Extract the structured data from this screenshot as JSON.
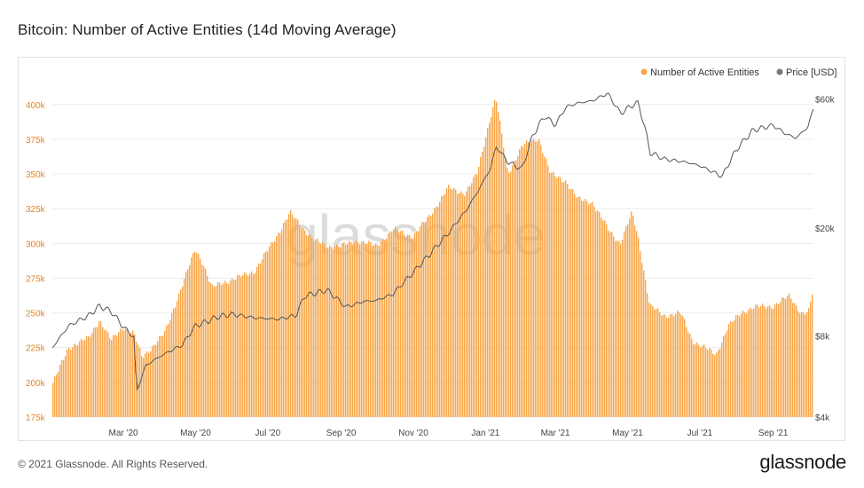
{
  "title": "Bitcoin: Number of Active Entities (14d Moving Average)",
  "footer": {
    "copyright": "© 2021 Glassnode. All Rights Reserved.",
    "logo": "glassnode"
  },
  "colors": {
    "bars": "#f7a64a",
    "bar_stroke": "#ef9a3a",
    "price": "#555555",
    "left_axis": "#e0862d",
    "grid": "#ececec",
    "watermark": "#dcdcdc"
  },
  "chart_data": {
    "type": "bar",
    "title": "Bitcoin: Number of Active Entities (14d Moving Average)",
    "watermark": "glassnode",
    "legend": [
      "Number of Active Entities",
      "Price [USD]"
    ],
    "legend_position": "top-right",
    "x_ticks": [
      "Mar '20",
      "May '20",
      "Jul '20",
      "Sep '20",
      "Nov '20",
      "Jan '21",
      "Mar '21",
      "May '21",
      "Jul '21",
      "Sep '21"
    ],
    "y_left": {
      "ticks": [
        "175k",
        "200k",
        "225k",
        "250k",
        "275k",
        "300k",
        "325k",
        "350k",
        "375k",
        "400k"
      ],
      "range": [
        175000,
        412000
      ]
    },
    "y_right": {
      "ticks": [
        "$4k",
        "$8k",
        "$20k",
        "$60k"
      ],
      "scale": "log",
      "range": [
        4000,
        66000
      ]
    },
    "series": [
      {
        "name": "Number of Active Entities",
        "type": "bar",
        "x": [
          "2020-01-01",
          "2020-01-15",
          "2020-02-01",
          "2020-02-10",
          "2020-02-20",
          "2020-03-01",
          "2020-03-10",
          "2020-03-17",
          "2020-03-25",
          "2020-04-05",
          "2020-04-20",
          "2020-05-01",
          "2020-05-08",
          "2020-05-15",
          "2020-05-25",
          "2020-06-05",
          "2020-06-20",
          "2020-07-05",
          "2020-07-20",
          "2020-08-01",
          "2020-08-10",
          "2020-08-20",
          "2020-09-01",
          "2020-09-15",
          "2020-10-01",
          "2020-10-15",
          "2020-11-01",
          "2020-11-15",
          "2020-12-01",
          "2020-12-15",
          "2020-12-25",
          "2021-01-05",
          "2021-01-10",
          "2021-01-20",
          "2021-02-01",
          "2021-02-15",
          "2021-02-25",
          "2021-03-10",
          "2021-03-20",
          "2021-04-01",
          "2021-04-15",
          "2021-04-25",
          "2021-05-05",
          "2021-05-10",
          "2021-05-20",
          "2021-06-01",
          "2021-06-15",
          "2021-06-25",
          "2021-07-05",
          "2021-07-15",
          "2021-07-25",
          "2021-08-05",
          "2021-08-15",
          "2021-09-01",
          "2021-09-15",
          "2021-09-25",
          "2021-10-01",
          "2021-10-05"
        ],
        "values": [
          198000,
          225000,
          232000,
          245000,
          230000,
          240000,
          235000,
          218000,
          225000,
          235000,
          270000,
          296000,
          285000,
          268000,
          272000,
          275000,
          280000,
          300000,
          322000,
          310000,
          302000,
          298000,
          298000,
          302000,
          298000,
          310000,
          305000,
          320000,
          340000,
          336000,
          350000,
          390000,
          405000,
          350000,
          370000,
          376000,
          350000,
          345000,
          332000,
          330000,
          310000,
          300000,
          322000,
          305000,
          255000,
          248000,
          250000,
          230000,
          225000,
          220000,
          240000,
          250000,
          254000,
          255000,
          262000,
          250000,
          250000,
          267000
        ]
      },
      {
        "name": "Price [USD]",
        "type": "line",
        "x": [
          "2020-01-01",
          "2020-01-15",
          "2020-02-01",
          "2020-02-10",
          "2020-02-20",
          "2020-03-01",
          "2020-03-10",
          "2020-03-12",
          "2020-03-20",
          "2020-04-01",
          "2020-04-20",
          "2020-05-01",
          "2020-05-10",
          "2020-05-20",
          "2020-06-01",
          "2020-06-20",
          "2020-07-10",
          "2020-07-25",
          "2020-08-01",
          "2020-08-20",
          "2020-09-05",
          "2020-09-20",
          "2020-10-01",
          "2020-10-15",
          "2020-11-01",
          "2020-11-15",
          "2020-12-01",
          "2020-12-15",
          "2020-12-25",
          "2021-01-05",
          "2021-01-10",
          "2021-01-20",
          "2021-02-01",
          "2021-02-10",
          "2021-02-20",
          "2021-03-01",
          "2021-03-10",
          "2021-03-20",
          "2021-04-01",
          "2021-04-14",
          "2021-04-25",
          "2021-05-05",
          "2021-05-10",
          "2021-05-20",
          "2021-06-01",
          "2021-06-20",
          "2021-07-01",
          "2021-07-20",
          "2021-08-01",
          "2021-08-15",
          "2021-09-01",
          "2021-09-10",
          "2021-09-20",
          "2021-09-30",
          "2021-10-05"
        ],
        "values": [
          7200,
          8700,
          9500,
          10300,
          9800,
          8600,
          7900,
          4900,
          6200,
          6700,
          7400,
          8700,
          9000,
          9400,
          9600,
          9300,
          9200,
          9500,
          11200,
          11800,
          10200,
          10700,
          10800,
          11400,
          13700,
          16000,
          19200,
          23000,
          27000,
          33000,
          40000,
          35000,
          33000,
          44000,
          52000,
          48000,
          56000,
          58000,
          59000,
          63000,
          53000,
          57000,
          58000,
          38000,
          36000,
          35000,
          34000,
          31000,
          39000,
          46000,
          48000,
          45000,
          43000,
          47000,
          55000
        ]
      }
    ]
  }
}
